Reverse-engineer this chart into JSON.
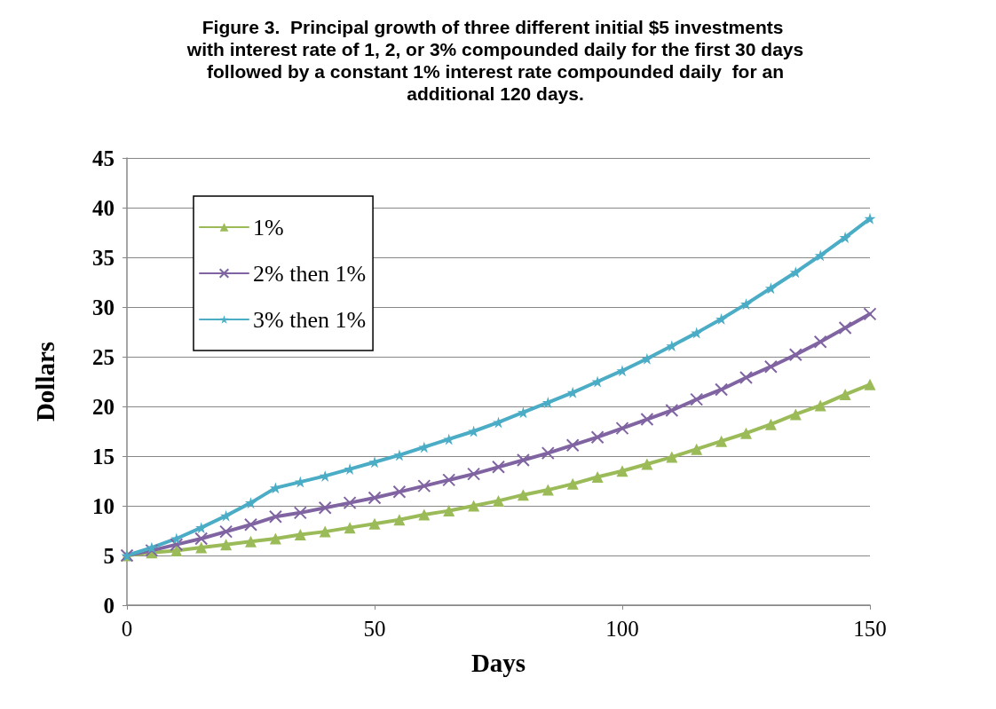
{
  "chart_data": {
    "type": "line",
    "title": "Figure 3.  Principal growth of three different initial $5 investments with interest rate of 1, 2, or 3% compounded daily for the first 30 days followed by a constant 1% interest rate compounded daily  for an additional 120 days.",
    "xlabel": "Days",
    "ylabel": "Dollars",
    "x": [
      0,
      5,
      10,
      15,
      20,
      25,
      30,
      35,
      40,
      45,
      50,
      55,
      60,
      65,
      70,
      75,
      80,
      85,
      90,
      95,
      100,
      105,
      110,
      115,
      120,
      125,
      130,
      135,
      140,
      145,
      150
    ],
    "series": [
      {
        "name": "1%",
        "color": "#9bbb59",
        "marker": "triangle",
        "values": [
          5.0,
          5.3,
          5.5,
          5.8,
          6.1,
          6.4,
          6.7,
          7.1,
          7.4,
          7.8,
          8.2,
          8.6,
          9.1,
          9.5,
          10.0,
          10.5,
          11.1,
          11.6,
          12.2,
          12.9,
          13.5,
          14.2,
          14.9,
          15.7,
          16.5,
          17.3,
          18.2,
          19.2,
          20.1,
          21.2,
          22.2
        ]
      },
      {
        "name": "2% then 1%",
        "color": "#8064a2",
        "marker": "cross",
        "values": [
          5.0,
          5.5,
          6.1,
          6.7,
          7.4,
          8.1,
          8.9,
          9.3,
          9.8,
          10.3,
          10.8,
          11.4,
          12.0,
          12.6,
          13.2,
          13.9,
          14.6,
          15.3,
          16.1,
          16.9,
          17.8,
          18.7,
          19.6,
          20.7,
          21.7,
          22.9,
          24.0,
          25.2,
          26.5,
          27.9,
          29.3
        ]
      },
      {
        "name": "3% then 1%",
        "color": "#4bacc6",
        "marker": "star",
        "values": [
          5.0,
          5.8,
          6.7,
          7.8,
          9.0,
          10.3,
          11.8,
          12.4,
          13.0,
          13.7,
          14.4,
          15.1,
          15.9,
          16.7,
          17.5,
          18.4,
          19.4,
          20.4,
          21.4,
          22.5,
          23.6,
          24.8,
          26.1,
          27.4,
          28.8,
          30.3,
          31.9,
          33.5,
          35.2,
          37.0,
          38.9
        ]
      }
    ],
    "xlim": [
      0,
      150
    ],
    "xticks": [
      0,
      50,
      100,
      150
    ],
    "ylim": [
      0,
      45
    ],
    "yticks": [
      0,
      5,
      10,
      15,
      20,
      25,
      30,
      35,
      40,
      45
    ],
    "grid": "y",
    "legend": "top left",
    "line_style": "solid"
  }
}
